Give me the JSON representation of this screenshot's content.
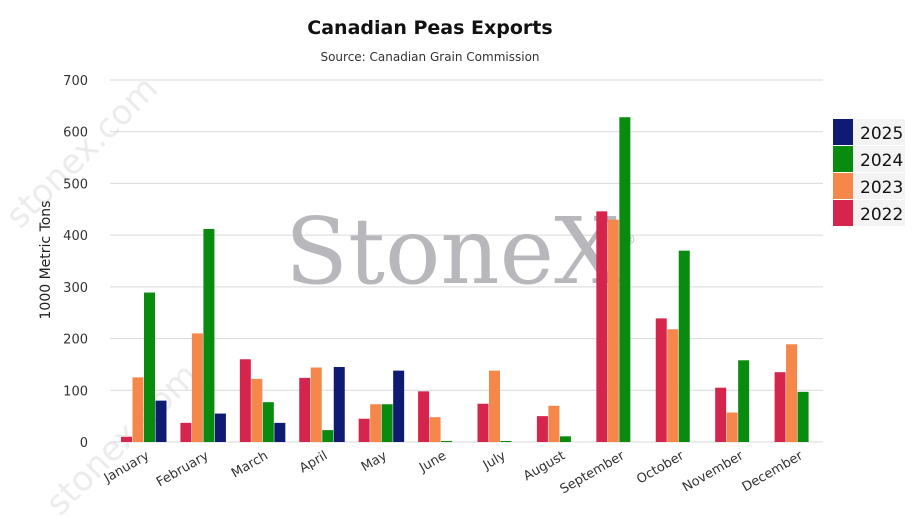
{
  "chart_data": {
    "type": "bar",
    "title": "Canadian Peas Exports",
    "subtitle": "Source: Canadian Grain Commission",
    "ylabel": "1000 Metric Tons",
    "xlabel": "",
    "ylim": [
      0,
      700
    ],
    "yticks": [
      0,
      100,
      200,
      300,
      400,
      500,
      600,
      700
    ],
    "grid": true,
    "legend_position": "right",
    "categories": [
      "January",
      "February",
      "March",
      "April",
      "May",
      "June",
      "July",
      "August",
      "September",
      "October",
      "November",
      "December"
    ],
    "series": [
      {
        "name": "2022",
        "color": "#d6254d",
        "values": [
          10,
          37,
          160,
          124,
          45,
          98,
          74,
          50,
          446,
          239,
          105,
          135
        ]
      },
      {
        "name": "2023",
        "color": "#f5874a",
        "values": [
          125,
          210,
          122,
          144,
          73,
          48,
          138,
          70,
          430,
          218,
          57,
          189
        ]
      },
      {
        "name": "2024",
        "color": "#098b0f",
        "values": [
          289,
          412,
          77,
          23,
          73,
          2,
          2,
          11,
          628,
          370,
          158,
          97
        ]
      },
      {
        "name": "2025",
        "color": "#0f1a72",
        "values": [
          80,
          55,
          37,
          145,
          138,
          null,
          null,
          null,
          null,
          null,
          null,
          null
        ]
      }
    ],
    "legend_order": [
      "2025",
      "2024",
      "2023",
      "2022"
    ],
    "watermark": "StoneX",
    "watermark_side": "stonex.com"
  }
}
